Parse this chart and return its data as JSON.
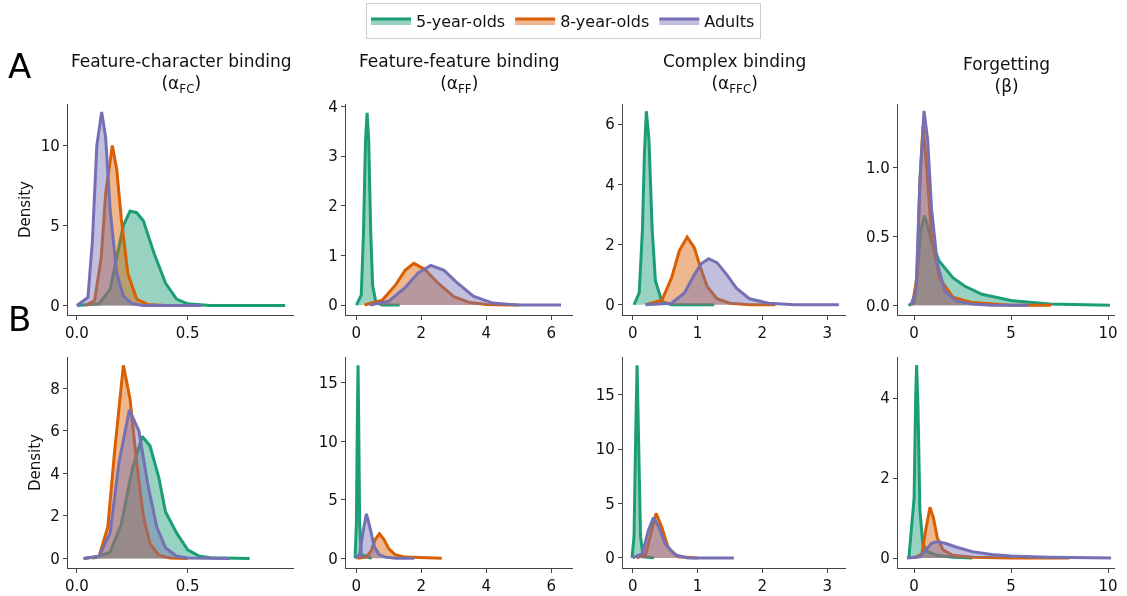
{
  "chart_data": [
    {
      "type": "area",
      "title": "Feature-character binding",
      "subtitle": "(α$_{FC}$)",
      "ylabel": "Density",
      "annotations": [
        "A"
      ],
      "legend": "top",
      "xlim": [
        -0.04,
        0.98
      ],
      "xticks": [
        {
          "value": 0,
          "label": "0.0"
        },
        0.5
      ],
      "ylim": [
        -0.6,
        12.6
      ],
      "yticks": [
        0,
        5,
        10
      ],
      "series": [
        {
          "name": "5-year-olds",
          "color": "#1b9e77",
          "x": [
            0.0,
            0.1,
            0.15,
            0.18,
            0.21,
            0.24,
            0.27,
            0.3,
            0.35,
            0.4,
            0.45,
            0.5,
            0.6,
            0.94
          ],
          "values": [
            0,
            0.1,
            1,
            3,
            5,
            5.9,
            5.8,
            5.3,
            3.2,
            1.4,
            0.4,
            0.1,
            0,
            0
          ]
        },
        {
          "name": "8-year-olds",
          "color": "#d95f02",
          "x": [
            0.04,
            0.08,
            0.11,
            0.13,
            0.16,
            0.18,
            0.2,
            0.23,
            0.27,
            0.32,
            0.4,
            0.5
          ],
          "values": [
            0,
            0.3,
            3,
            7,
            10,
            8.5,
            5.5,
            2,
            0.4,
            0.05,
            0,
            0
          ]
        },
        {
          "name": "Adults",
          "color": "#7570b3",
          "x": [
            0.0,
            0.05,
            0.07,
            0.09,
            0.112,
            0.13,
            0.15,
            0.18,
            0.21,
            0.25,
            0.3,
            0.4,
            0.565
          ],
          "values": [
            0,
            0.5,
            4,
            10,
            12.1,
            10.5,
            6,
            2,
            0.6,
            0.1,
            0,
            0,
            0
          ]
        }
      ]
    },
    {
      "type": "area",
      "title": "Feature-feature binding",
      "subtitle": "(α$_{FF}$)",
      "xlim": [
        -0.32,
        6.67
      ],
      "xticks": [
        0,
        2,
        4,
        6
      ],
      "ylim": [
        -0.2,
        4.05
      ],
      "yticks": [
        0,
        1,
        2,
        3,
        4
      ],
      "series": [
        {
          "color": "#1b9e77",
          "x": [
            0,
            0.15,
            0.22,
            0.28,
            0.33,
            0.38,
            0.44,
            0.5,
            0.6,
            0.8,
            1.33
          ],
          "values": [
            0,
            0.2,
            1.5,
            3.3,
            3.87,
            3.3,
            1.5,
            0.4,
            0.05,
            0,
            0
          ]
        },
        {
          "color": "#d95f02",
          "x": [
            0.25,
            0.8,
            1.2,
            1.5,
            1.77,
            2.1,
            2.5,
            3,
            3.5,
            4,
            5
          ],
          "values": [
            0,
            0.1,
            0.4,
            0.7,
            0.84,
            0.72,
            0.45,
            0.17,
            0.05,
            0.01,
            0
          ]
        },
        {
          "color": "#7570b3",
          "x": [
            0.42,
            1,
            1.5,
            1.9,
            2.29,
            2.7,
            3.1,
            3.6,
            4.2,
            5,
            6.3
          ],
          "values": [
            0,
            0.08,
            0.35,
            0.65,
            0.8,
            0.7,
            0.45,
            0.18,
            0.04,
            0,
            0
          ]
        }
      ]
    },
    {
      "type": "area",
      "title": "Complex binding",
      "subtitle": "(α$_{FFC}$)",
      "xlim": [
        -0.15,
        3.29
      ],
      "xticks": [
        0,
        1,
        2,
        3
      ],
      "ylim": [
        -0.34,
        6.67
      ],
      "yticks": [
        0,
        2,
        4,
        6
      ],
      "series": [
        {
          "color": "#1b9e77",
          "x": [
            0.02,
            0.1,
            0.15,
            0.18,
            0.21,
            0.25,
            0.3,
            0.35,
            0.45,
            0.6,
            1.26
          ],
          "values": [
            0,
            0.4,
            2.5,
            5,
            6.43,
            5.5,
            2.5,
            0.8,
            0.1,
            0,
            0
          ]
        },
        {
          "color": "#d95f02",
          "x": [
            0.2,
            0.45,
            0.6,
            0.72,
            0.84,
            0.95,
            1.05,
            1.15,
            1.3,
            1.5,
            1.8,
            2.2
          ],
          "values": [
            0,
            0.15,
            0.9,
            1.8,
            2.25,
            1.9,
            1.2,
            0.6,
            0.2,
            0.05,
            0,
            0
          ]
        },
        {
          "color": "#7570b3",
          "x": [
            0.2,
            0.6,
            0.8,
            0.95,
            1.05,
            1.17,
            1.3,
            1.45,
            1.6,
            1.8,
            2.1,
            2.5,
            3.18
          ],
          "values": [
            0,
            0.05,
            0.4,
            1.0,
            1.35,
            1.53,
            1.4,
            1.0,
            0.55,
            0.2,
            0.05,
            0,
            0
          ]
        }
      ]
    },
    {
      "type": "area",
      "title": "Forgetting",
      "subtitle": "(β)",
      "xlim": [
        -0.83,
        10.36
      ],
      "xticks": [
        0,
        5,
        10
      ],
      "ylim": [
        -0.07,
        1.46
      ],
      "yticks": [
        {
          "value": 0,
          "label": "0.0"
        },
        0.5,
        {
          "value": 1,
          "label": "1.0"
        }
      ],
      "series": [
        {
          "color": "#1b9e77",
          "x": [
            -0.29,
            0,
            0.2,
            0.35,
            0.54,
            0.75,
            1,
            1.3,
            2,
            2.6,
            3.5,
            5,
            7,
            10.1
          ],
          "values": [
            0,
            0.02,
            0.3,
            0.55,
            0.65,
            0.55,
            0.42,
            0.32,
            0.2,
            0.14,
            0.08,
            0.035,
            0.01,
            0
          ]
        },
        {
          "color": "#d95f02",
          "x": [
            -0.1,
            0.15,
            0.3,
            0.46,
            0.65,
            0.9,
            1.3,
            2,
            3,
            5,
            7.07
          ],
          "values": [
            0,
            0.2,
            0.9,
            1.3,
            1.0,
            0.5,
            0.2,
            0.06,
            0.02,
            0,
            0
          ]
        },
        {
          "color": "#7570b3",
          "x": [
            -0.18,
            0.1,
            0.3,
            0.51,
            0.7,
            0.9,
            1.2,
            1.6,
            2.2,
            3,
            4,
            5.9
          ],
          "values": [
            0,
            0.1,
            0.9,
            1.41,
            1.2,
            0.7,
            0.3,
            0.1,
            0.03,
            0.01,
            0,
            0
          ]
        }
      ]
    },
    {
      "type": "area",
      "ylabel": "Density",
      "annotations": [
        "B"
      ],
      "xlim": [
        -0.04,
        0.98
      ],
      "xticks": [
        {
          "value": 0,
          "label": "0.0"
        },
        0.5
      ],
      "ylim": [
        -0.45,
        9.48
      ],
      "yticks": [
        0,
        2,
        4,
        6,
        8
      ],
      "series": [
        {
          "color": "#1b9e77",
          "x": [
            0.07,
            0.15,
            0.2,
            0.25,
            0.295,
            0.33,
            0.37,
            0.4,
            0.45,
            0.5,
            0.55,
            0.6,
            0.78
          ],
          "values": [
            0,
            0.3,
            1.6,
            4.2,
            5.74,
            5.3,
            3.8,
            2.2,
            1.2,
            0.4,
            0.12,
            0.03,
            0
          ]
        },
        {
          "color": "#d95f02",
          "x": [
            0.03,
            0.1,
            0.14,
            0.17,
            0.21,
            0.24,
            0.27,
            0.3,
            0.33,
            0.37,
            0.42,
            0.5
          ],
          "values": [
            0,
            0.1,
            1.5,
            5,
            9.09,
            7.5,
            4.5,
            2,
            0.7,
            0.15,
            0.02,
            0
          ]
        },
        {
          "color": "#7570b3",
          "x": [
            0.03,
            0.1,
            0.15,
            0.19,
            0.237,
            0.28,
            0.32,
            0.36,
            0.4,
            0.45,
            0.5,
            0.69
          ],
          "values": [
            0,
            0.1,
            1.2,
            4.5,
            6.99,
            6,
            3.5,
            1.5,
            0.5,
            0.1,
            0.02,
            0
          ]
        }
      ]
    },
    {
      "type": "area",
      "xlim": [
        -0.32,
        6.67
      ],
      "xticks": [
        0,
        2,
        4,
        6
      ],
      "ylim": [
        -0.83,
        17.2
      ],
      "yticks": [
        0,
        5,
        10,
        15
      ],
      "series": [
        {
          "color": "#1b9e77",
          "x": [
            -0.04,
            0.0,
            0.03,
            0.05,
            0.07,
            0.1,
            0.15,
            0.47
          ],
          "values": [
            0,
            3,
            12,
            16.5,
            12,
            3,
            0.3,
            0
          ]
        },
        {
          "color": "#d95f02",
          "x": [
            0.03,
            0.3,
            0.45,
            0.58,
            0.71,
            0.85,
            1.0,
            1.2,
            1.5,
            2.63
          ],
          "values": [
            0,
            0.1,
            0.6,
            1.6,
            2.1,
            1.6,
            0.8,
            0.3,
            0.1,
            0
          ]
        },
        {
          "color": "#7570b3",
          "x": [
            -0.04,
            0.1,
            0.2,
            0.31,
            0.42,
            0.55,
            0.7,
            0.9,
            1.2,
            1.78
          ],
          "values": [
            0,
            0.3,
            2.2,
            3.8,
            2.6,
            1.0,
            0.3,
            0.1,
            0,
            0
          ]
        }
      ]
    },
    {
      "type": "area",
      "xlim": [
        -0.15,
        3.29
      ],
      "xticks": [
        0,
        1,
        2,
        3
      ],
      "ylim": [
        -0.93,
        18.46
      ],
      "yticks": [
        0,
        5,
        10,
        15
      ],
      "series": [
        {
          "color": "#1b9e77",
          "x": [
            -0.01,
            0.02,
            0.045,
            0.067,
            0.09,
            0.12,
            0.16,
            0.33
          ],
          "values": [
            0,
            2,
            11,
            17.7,
            11,
            2,
            0.1,
            0
          ]
        },
        {
          "color": "#d95f02",
          "x": [
            0.06,
            0.2,
            0.27,
            0.36,
            0.45,
            0.55,
            0.7,
            1.0
          ],
          "values": [
            0,
            0.3,
            2,
            4.1,
            2.8,
            0.9,
            0.1,
            0
          ]
        },
        {
          "color": "#7570b3",
          "x": [
            0,
            0.15,
            0.24,
            0.32,
            0.4,
            0.5,
            0.65,
            0.85,
            1.56
          ],
          "values": [
            0,
            0.4,
            2.5,
            3.7,
            2.9,
            1.3,
            0.3,
            0,
            0
          ]
        }
      ]
    },
    {
      "type": "area",
      "xlim": [
        -0.83,
        10.36
      ],
      "xticks": [
        0,
        5,
        10
      ],
      "ylim": [
        -0.25,
        5.03
      ],
      "yticks": [
        0,
        2,
        4
      ],
      "series": [
        {
          "color": "#1b9e77",
          "x": [
            -0.27,
            0,
            0.08,
            0.13,
            0.2,
            0.3,
            0.45,
            0.7,
            1.2,
            2,
            3
          ],
          "values": [
            0,
            1.5,
            4,
            4.83,
            3.8,
            1.2,
            0.35,
            0.15,
            0.07,
            0.02,
            0
          ]
        },
        {
          "color": "#d95f02",
          "x": [
            0,
            0.4,
            0.6,
            0.82,
            1.0,
            1.2,
            1.5,
            2,
            3,
            5,
            8
          ],
          "values": [
            0,
            0.1,
            0.7,
            1.27,
            1.0,
            0.5,
            0.2,
            0.07,
            0.02,
            0,
            0
          ]
        },
        {
          "color": "#7570b3",
          "x": [
            -0.37,
            0.3,
            0.6,
            0.9,
            1.19,
            1.6,
            2.2,
            3,
            4,
            5,
            7,
            10.16
          ],
          "values": [
            0,
            0.03,
            0.2,
            0.37,
            0.41,
            0.37,
            0.27,
            0.16,
            0.09,
            0.05,
            0.02,
            0
          ]
        }
      ]
    }
  ]
}
